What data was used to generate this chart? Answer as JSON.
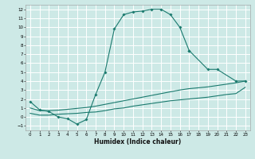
{
  "xlabel": "Humidex (Indice chaleur)",
  "bg_color": "#cde9e6",
  "grid_color": "#ffffff",
  "line_color": "#1a7a6e",
  "curve1_x": [
    0,
    1,
    2,
    3,
    4,
    5,
    6,
    7,
    8,
    9,
    10,
    11,
    12,
    13,
    14,
    15,
    16,
    17
  ],
  "curve1_y": [
    1.7,
    0.8,
    0.6,
    0.0,
    -0.2,
    -0.8,
    -0.3,
    2.5,
    5.0,
    9.8,
    11.4,
    11.7,
    11.8,
    12.0,
    12.0,
    11.4,
    10.0,
    7.4
  ],
  "curve2_x": [
    17,
    19,
    20,
    22,
    23
  ],
  "curve2_y": [
    7.4,
    5.3,
    5.3,
    4.0,
    4.0
  ],
  "lower1_x": [
    0,
    1,
    2,
    3,
    4,
    5,
    6,
    7,
    8,
    9,
    10,
    11,
    12,
    13,
    14,
    15,
    16,
    17,
    18,
    19,
    20,
    21,
    22,
    23
  ],
  "lower1_y": [
    1.0,
    0.7,
    0.7,
    0.75,
    0.85,
    0.95,
    1.05,
    1.2,
    1.4,
    1.6,
    1.8,
    2.0,
    2.2,
    2.4,
    2.6,
    2.8,
    3.0,
    3.15,
    3.25,
    3.35,
    3.5,
    3.65,
    3.8,
    4.0
  ],
  "lower2_x": [
    0,
    1,
    2,
    3,
    4,
    5,
    6,
    7,
    8,
    9,
    10,
    11,
    12,
    13,
    14,
    15,
    16,
    17,
    18,
    19,
    20,
    21,
    22,
    23
  ],
  "lower2_y": [
    0.4,
    0.2,
    0.2,
    0.3,
    0.35,
    0.4,
    0.5,
    0.55,
    0.7,
    0.9,
    1.0,
    1.2,
    1.35,
    1.5,
    1.65,
    1.8,
    1.9,
    2.0,
    2.1,
    2.2,
    2.35,
    2.5,
    2.6,
    3.3
  ],
  "xlim": [
    -0.5,
    23.5
  ],
  "ylim": [
    -1.5,
    12.5
  ],
  "xticks": [
    0,
    1,
    2,
    3,
    4,
    5,
    6,
    7,
    8,
    9,
    10,
    11,
    12,
    13,
    14,
    15,
    16,
    17,
    18,
    19,
    20,
    21,
    22,
    23
  ],
  "yticks": [
    -1,
    0,
    1,
    2,
    3,
    4,
    5,
    6,
    7,
    8,
    9,
    10,
    11,
    12
  ],
  "marker": "D",
  "markersize": 1.8,
  "linewidth": 0.8,
  "tick_fontsize": 4.0,
  "xlabel_fontsize": 5.5
}
